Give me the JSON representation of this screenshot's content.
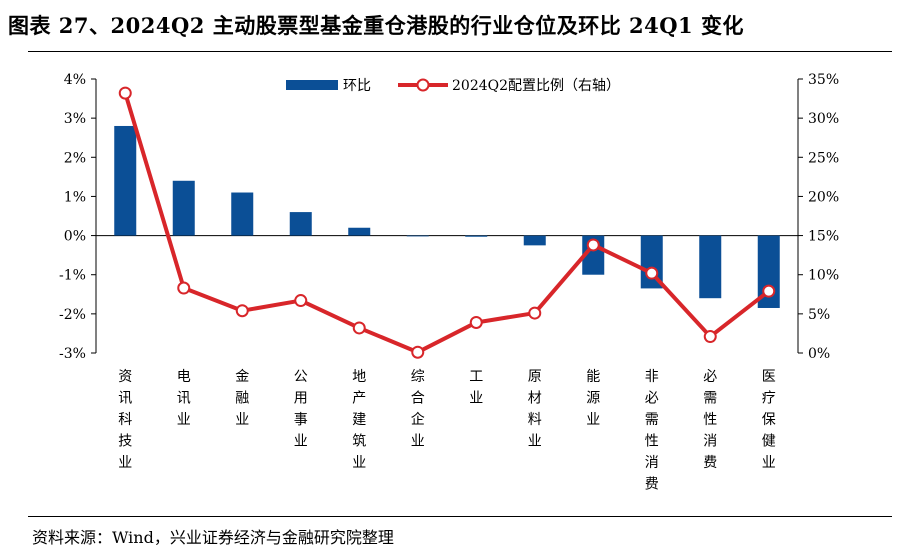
{
  "title": "图表 27、2024Q2 主动股票型基金重仓港股的行业仓位及环比 24Q1 变化",
  "source": "资料来源：Wind，兴业证券经济与金融研究院整理",
  "chart_data": {
    "type": "bar",
    "categories": [
      "资讯科技业",
      "电讯业",
      "金融业",
      "公用事业",
      "地产建筑业",
      "综合企业",
      "工业",
      "原材料业",
      "能源业",
      "非必需性消费",
      "必需性消费",
      "医疗保健业"
    ],
    "series": [
      {
        "name": "环比",
        "type": "bar",
        "axis": "left",
        "color": "#0b4f96",
        "values": [
          2.8,
          1.4,
          1.1,
          0.6,
          0.2,
          0.0,
          -0.03,
          -0.25,
          -1.0,
          -1.35,
          -1.6,
          -1.85
        ]
      },
      {
        "name": "2024Q2配置比例（右轴）",
        "type": "line",
        "axis": "right",
        "color": "#d8262a",
        "values": [
          33.2,
          8.3,
          5.4,
          6.7,
          3.2,
          0.1,
          3.9,
          5.1,
          13.8,
          10.2,
          2.1,
          7.9
        ]
      }
    ],
    "y_left": {
      "ylim": [
        -3,
        4
      ],
      "ticks": [
        "-3%",
        "-2%",
        "-1%",
        "0%",
        "1%",
        "2%",
        "3%",
        "4%"
      ]
    },
    "y_right": {
      "ylim": [
        0,
        35
      ],
      "ticks": [
        "0%",
        "5%",
        "10%",
        "15%",
        "20%",
        "25%",
        "30%",
        "35%"
      ]
    },
    "legend_position": "top-center",
    "grid": false
  }
}
